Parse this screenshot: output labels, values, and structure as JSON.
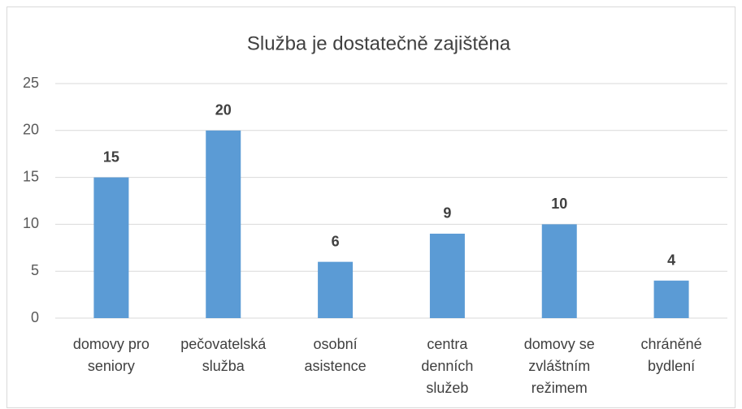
{
  "chart_data": {
    "type": "bar",
    "title": "Služba je dostatečně zajištěna",
    "categories": [
      "domovy pro seniory",
      "pečovatelská služba",
      "osobní asistence",
      "centra denních služeb",
      "domovy se zvláštním režimem",
      "chráněné bydlení"
    ],
    "values": [
      15,
      20,
      6,
      9,
      10,
      4
    ],
    "color": "#5b9bd5",
    "ylim": [
      0,
      25
    ],
    "yticks": [
      0,
      5,
      10,
      15,
      20,
      25
    ],
    "grid": true
  }
}
